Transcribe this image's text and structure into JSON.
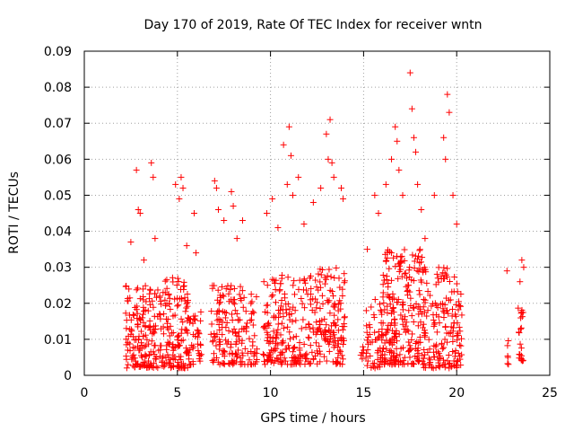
{
  "chart_data": {
    "type": "scatter",
    "title": "Day 170 of 2019, Rate Of TEC Index for receiver wntn",
    "xlabel": "GPS time / hours",
    "ylabel": "ROTI / TECUs",
    "xlim": [
      0,
      25
    ],
    "ylim": [
      0,
      0.09
    ],
    "x_ticks": [
      0,
      5,
      10,
      15,
      20,
      25
    ],
    "x_tick_labels": [
      "0",
      "5",
      "10",
      "15",
      "20",
      "25"
    ],
    "y_ticks": [
      0,
      0.01,
      0.02,
      0.03,
      0.04,
      0.05,
      0.06,
      0.07,
      0.08,
      0.09
    ],
    "y_tick_labels": [
      "0",
      "0.01",
      "0.02",
      "0.03",
      "0.04",
      "0.05",
      "0.06",
      "0.07",
      "0.08",
      "0.09"
    ],
    "grid": true,
    "marker": "plus",
    "color": "#ff0000",
    "clusters": [
      {
        "x_range": [
          2.2,
          4.1
        ],
        "y_range": [
          0.002,
          0.025
        ],
        "count": 170
      },
      {
        "x_range": [
          4.1,
          5.6
        ],
        "y_range": [
          0.002,
          0.028
        ],
        "count": 140
      },
      {
        "x_range": [
          5.6,
          6.3
        ],
        "y_range": [
          0.003,
          0.018
        ],
        "count": 40
      },
      {
        "x_range": [
          6.8,
          9.3
        ],
        "y_range": [
          0.003,
          0.025
        ],
        "count": 170
      },
      {
        "x_range": [
          9.6,
          12.3
        ],
        "y_range": [
          0.003,
          0.028
        ],
        "count": 200
      },
      {
        "x_range": [
          12.3,
          14.0
        ],
        "y_range": [
          0.003,
          0.03
        ],
        "count": 140
      },
      {
        "x_range": [
          14.8,
          16.0
        ],
        "y_range": [
          0.002,
          0.022
        ],
        "count": 60
      },
      {
        "x_range": [
          16.0,
          18.2
        ],
        "y_range": [
          0.003,
          0.035
        ],
        "count": 240
      },
      {
        "x_range": [
          18.2,
          20.3
        ],
        "y_range": [
          0.002,
          0.03
        ],
        "count": 170
      },
      {
        "x_range": [
          22.7,
          22.8
        ],
        "y_range": [
          0.003,
          0.01
        ],
        "count": 6
      },
      {
        "x_range": [
          23.3,
          23.6
        ],
        "y_range": [
          0.004,
          0.02
        ],
        "count": 25
      }
    ],
    "points": [
      [
        2.5,
        0.037
      ],
      [
        2.8,
        0.057
      ],
      [
        2.9,
        0.046
      ],
      [
        3.0,
        0.045
      ],
      [
        3.2,
        0.032
      ],
      [
        3.6,
        0.059
      ],
      [
        3.7,
        0.055
      ],
      [
        3.8,
        0.038
      ],
      [
        4.9,
        0.053
      ],
      [
        5.1,
        0.049
      ],
      [
        5.2,
        0.055
      ],
      [
        5.3,
        0.052
      ],
      [
        5.5,
        0.036
      ],
      [
        5.9,
        0.045
      ],
      [
        6.0,
        0.034
      ],
      [
        7.0,
        0.054
      ],
      [
        7.1,
        0.052
      ],
      [
        7.2,
        0.046
      ],
      [
        7.5,
        0.043
      ],
      [
        7.9,
        0.051
      ],
      [
        8.0,
        0.047
      ],
      [
        8.2,
        0.038
      ],
      [
        8.5,
        0.043
      ],
      [
        9.8,
        0.045
      ],
      [
        10.1,
        0.049
      ],
      [
        10.4,
        0.041
      ],
      [
        10.7,
        0.064
      ],
      [
        10.9,
        0.053
      ],
      [
        11.0,
        0.069
      ],
      [
        11.1,
        0.061
      ],
      [
        11.2,
        0.05
      ],
      [
        11.5,
        0.055
      ],
      [
        11.8,
        0.042
      ],
      [
        12.3,
        0.048
      ],
      [
        12.7,
        0.052
      ],
      [
        13.0,
        0.067
      ],
      [
        13.1,
        0.06
      ],
      [
        13.2,
        0.071
      ],
      [
        13.3,
        0.059
      ],
      [
        13.4,
        0.055
      ],
      [
        13.8,
        0.052
      ],
      [
        13.9,
        0.049
      ],
      [
        15.2,
        0.035
      ],
      [
        15.6,
        0.05
      ],
      [
        15.8,
        0.045
      ],
      [
        16.2,
        0.053
      ],
      [
        16.5,
        0.06
      ],
      [
        16.7,
        0.069
      ],
      [
        16.8,
        0.065
      ],
      [
        16.9,
        0.057
      ],
      [
        17.1,
        0.05
      ],
      [
        17.5,
        0.084
      ],
      [
        17.6,
        0.074
      ],
      [
        17.7,
        0.066
      ],
      [
        17.8,
        0.062
      ],
      [
        17.9,
        0.053
      ],
      [
        18.1,
        0.046
      ],
      [
        18.3,
        0.038
      ],
      [
        18.8,
        0.05
      ],
      [
        19.3,
        0.066
      ],
      [
        19.4,
        0.06
      ],
      [
        19.5,
        0.078
      ],
      [
        19.6,
        0.073
      ],
      [
        19.8,
        0.05
      ],
      [
        20.0,
        0.042
      ],
      [
        22.7,
        0.029
      ],
      [
        23.5,
        0.032
      ],
      [
        23.6,
        0.03
      ],
      [
        23.4,
        0.026
      ]
    ]
  }
}
